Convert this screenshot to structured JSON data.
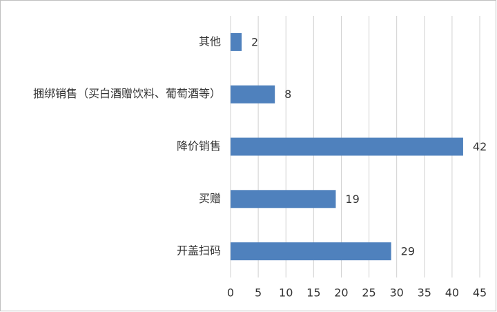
{
  "chart_data": {
    "type": "hbar",
    "categories": [
      "其他",
      "捆绑销售（买白酒赠饮料、葡萄酒等）",
      "降价销售",
      "买赠",
      "开盖扫码"
    ],
    "values": [
      2,
      8,
      42,
      19,
      29
    ],
    "color": "#4f81bd",
    "xlim": [
      0,
      45
    ],
    "xticks": [
      0,
      5,
      10,
      15,
      20,
      25,
      30,
      35,
      40,
      45
    ],
    "grid": true
  }
}
